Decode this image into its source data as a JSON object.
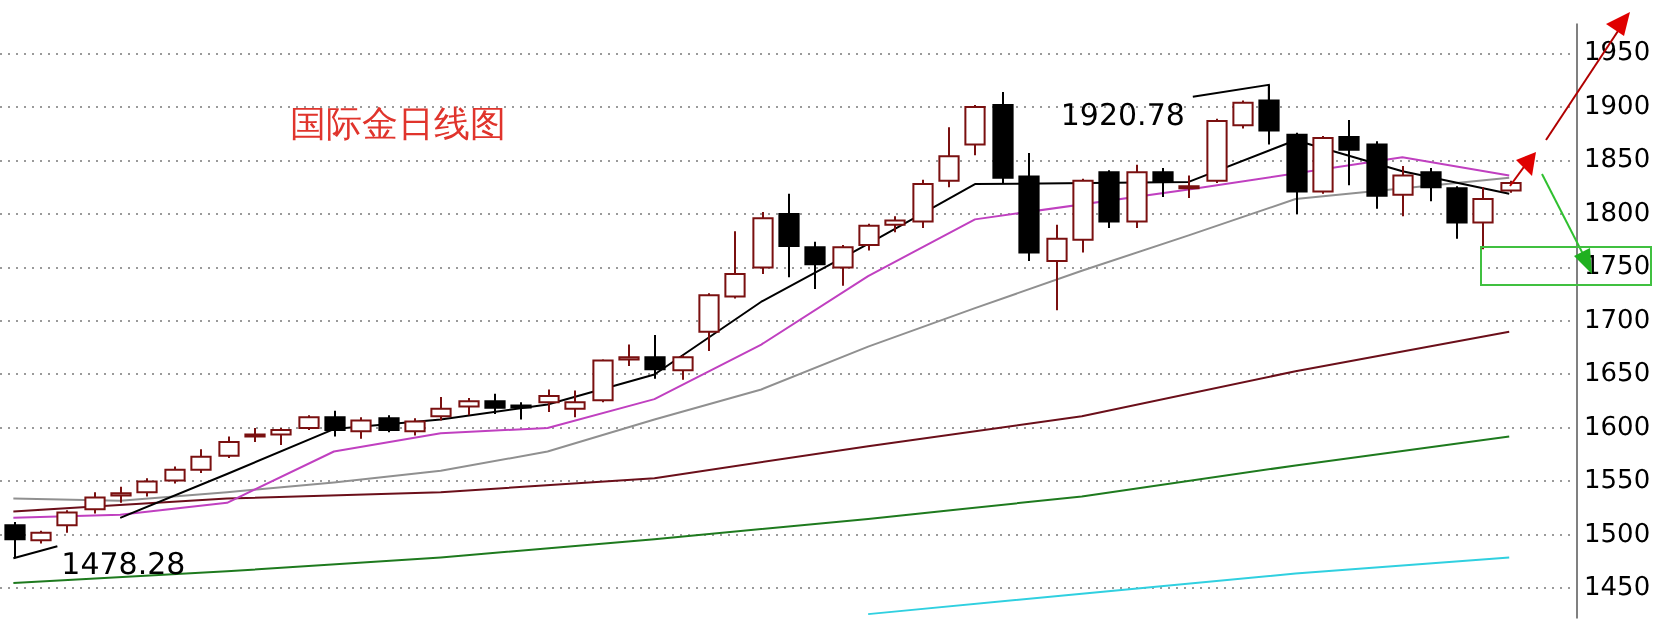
{
  "chart_data": {
    "type": "candlestick",
    "title": "国际金日线图",
    "categories": [
      null,
      null,
      null,
      null,
      null,
      null,
      null,
      null,
      null,
      null,
      null,
      null,
      null,
      null,
      null,
      null,
      null,
      null,
      null,
      null,
      null,
      null,
      null,
      null,
      null,
      null,
      null,
      null,
      null,
      null,
      null,
      null,
      null,
      null,
      null,
      null,
      null,
      null,
      null,
      null,
      null,
      null,
      null,
      null,
      null,
      null,
      null,
      null,
      null,
      null,
      null,
      null,
      null,
      null,
      null,
      null,
      null,
      null,
      null
    ],
    "ohlc": [
      [
        1509,
        1512,
        1478.28,
        1496
      ],
      [
        1495,
        1504,
        1492,
        1502
      ],
      [
        1509,
        1523,
        1502,
        1521
      ],
      [
        1524,
        1540,
        1520,
        1535
      ],
      [
        1537,
        1545,
        1530,
        1539
      ],
      [
        1540,
        1553,
        1536,
        1550
      ],
      [
        1551,
        1564,
        1548,
        1561
      ],
      [
        1561,
        1580,
        1558,
        1573
      ],
      [
        1574,
        1592,
        1572,
        1587
      ],
      [
        1592,
        1600,
        1587,
        1594
      ],
      [
        1594,
        1600,
        1584,
        1598
      ],
      [
        1600,
        1612,
        1598,
        1610
      ],
      [
        1610,
        1616,
        1592,
        1598
      ],
      [
        1597,
        1610,
        1590,
        1607
      ],
      [
        1609,
        1612,
        1596,
        1598
      ],
      [
        1597,
        1609,
        1593,
        1606
      ],
      [
        1611,
        1629,
        1607,
        1618
      ],
      [
        1620,
        1628,
        1612,
        1625
      ],
      [
        1625,
        1632,
        1613,
        1619
      ],
      [
        1621,
        1624,
        1608,
        1620
      ],
      [
        1624,
        1636,
        1615,
        1630
      ],
      [
        1618,
        1635,
        1610,
        1624
      ],
      [
        1626,
        1664,
        1624,
        1663
      ],
      [
        1664,
        1678,
        1658,
        1666
      ],
      [
        1666,
        1687,
        1646,
        1655
      ],
      [
        1654,
        1668,
        1645,
        1666
      ],
      [
        1690,
        1726,
        1672,
        1724
      ],
      [
        1723,
        1784,
        1721,
        1744
      ],
      [
        1750,
        1802,
        1744,
        1796
      ],
      [
        1800,
        1819,
        1741,
        1770
      ],
      [
        1769,
        1774,
        1730,
        1753
      ],
      [
        1750,
        1771,
        1733,
        1769
      ],
      [
        1771,
        1791,
        1766,
        1789
      ],
      [
        1790,
        1798,
        1783,
        1794
      ],
      [
        1793,
        1832,
        1787,
        1828
      ],
      [
        1831,
        1881,
        1825,
        1854
      ],
      [
        1865,
        1902,
        1855,
        1900
      ],
      [
        1902,
        1914,
        1828,
        1834
      ],
      [
        1835,
        1857,
        1756,
        1764
      ],
      [
        1756,
        1790,
        1710,
        1777
      ],
      [
        1776,
        1833,
        1764,
        1831
      ],
      [
        1839,
        1841,
        1787,
        1793
      ],
      [
        1793,
        1846,
        1787,
        1839
      ],
      [
        1839,
        1843,
        1816,
        1830
      ],
      [
        1824,
        1836,
        1815,
        1826
      ],
      [
        1831,
        1889,
        1829,
        1887
      ],
      [
        1883,
        1906,
        1880,
        1904
      ],
      [
        1906,
        1920.78,
        1865,
        1878
      ],
      [
        1874,
        1876,
        1800,
        1821
      ],
      [
        1821,
        1873,
        1819,
        1871
      ],
      [
        1872,
        1888,
        1827,
        1860
      ],
      [
        1865,
        1868,
        1805,
        1817
      ],
      [
        1818,
        1845,
        1798,
        1836
      ],
      [
        1839,
        1843,
        1812,
        1825
      ],
      [
        1824,
        1826,
        1777,
        1792
      ],
      [
        1792,
        1825,
        1767,
        1814
      ],
      [
        1822,
        1831,
        1820,
        1829
      ],
      null,
      null
    ],
    "series": [
      {
        "type": "line",
        "color": "#000000",
        "values": [
          null,
          null,
          null,
          null,
          1516,
          null,
          null,
          null,
          1557,
          null,
          null,
          null,
          1599,
          null,
          null,
          null,
          1608,
          null,
          null,
          null,
          1622,
          null,
          null,
          null,
          1650,
          null,
          null,
          null,
          1718,
          null,
          null,
          null,
          1772,
          null,
          null,
          null,
          1828,
          null,
          null,
          null,
          null,
          null,
          null,
          null,
          1830,
          null,
          null,
          null,
          1869,
          null,
          null,
          null,
          1840,
          null,
          null,
          null,
          1819,
          null,
          null
        ]
      },
      {
        "type": "line",
        "color": "#c040c0",
        "values": [
          1516,
          null,
          null,
          null,
          1519,
          null,
          null,
          null,
          1530,
          null,
          null,
          null,
          1578,
          null,
          null,
          null,
          1595,
          null,
          null,
          null,
          1600,
          null,
          null,
          null,
          1627,
          null,
          null,
          null,
          1678,
          null,
          null,
          null,
          1742,
          null,
          null,
          null,
          1795,
          null,
          null,
          null,
          null,
          null,
          null,
          null,
          1823,
          null,
          null,
          null,
          null,
          null,
          null,
          null,
          1853,
          null,
          null,
          null,
          1836,
          null,
          null
        ]
      },
      {
        "type": "line",
        "color": "#909090",
        "values": [
          1534,
          null,
          null,
          null,
          1532,
          null,
          null,
          null,
          1540,
          null,
          null,
          null,
          1549,
          null,
          null,
          null,
          1560,
          null,
          null,
          null,
          1578,
          null,
          null,
          null,
          1608,
          null,
          null,
          null,
          1636,
          null,
          null,
          null,
          1676,
          null,
          null,
          null,
          1712,
          null,
          null,
          null,
          1747,
          null,
          null,
          null,
          1780,
          null,
          null,
          null,
          1814,
          null,
          null,
          null,
          null,
          null,
          null,
          null,
          1834,
          null,
          null
        ]
      },
      {
        "type": "line",
        "color": "#6b0f1a",
        "values": [
          1522,
          null,
          null,
          null,
          null,
          null,
          null,
          null,
          1534,
          null,
          null,
          null,
          null,
          null,
          null,
          null,
          1540,
          null,
          null,
          null,
          null,
          null,
          null,
          null,
          1553,
          null,
          null,
          null,
          null,
          null,
          null,
          null,
          1583,
          null,
          null,
          null,
          null,
          null,
          null,
          null,
          1611,
          null,
          null,
          null,
          null,
          null,
          null,
          null,
          1653,
          null,
          null,
          null,
          null,
          null,
          null,
          null,
          1690,
          null,
          null
        ]
      },
      {
        "type": "line",
        "color": "#1e7a1e",
        "values": [
          1455,
          null,
          null,
          null,
          null,
          null,
          null,
          null,
          1466,
          null,
          null,
          null,
          null,
          null,
          null,
          null,
          1479,
          null,
          null,
          null,
          null,
          null,
          null,
          null,
          1496,
          null,
          null,
          null,
          null,
          null,
          null,
          null,
          1515,
          null,
          null,
          null,
          null,
          null,
          null,
          null,
          1536,
          null,
          null,
          null,
          null,
          null,
          null,
          null,
          1565,
          null,
          null,
          null,
          null,
          null,
          null,
          null,
          1592,
          null,
          null
        ]
      },
      {
        "type": "line",
        "color": "#30d0e0",
        "values": [
          null,
          null,
          null,
          null,
          null,
          null,
          null,
          null,
          null,
          null,
          null,
          null,
          null,
          null,
          null,
          null,
          null,
          null,
          null,
          null,
          null,
          null,
          null,
          null,
          null,
          null,
          null,
          null,
          null,
          null,
          null,
          null,
          1426,
          null,
          null,
          null,
          null,
          null,
          null,
          null,
          1445,
          null,
          null,
          null,
          null,
          null,
          null,
          null,
          1464,
          null,
          null,
          null,
          null,
          null,
          null,
          null,
          1479,
          null,
          null
        ]
      }
    ],
    "ylim": [
      1422,
      1978
    ],
    "yticks": [
      1450,
      1500,
      1550,
      1600,
      1650,
      1700,
      1750,
      1800,
      1850,
      1900,
      1950
    ],
    "annotations": [
      "1478.28",
      "1920.78"
    ],
    "grid": "y",
    "marker": "none",
    "tick_labels": "y"
  }
}
